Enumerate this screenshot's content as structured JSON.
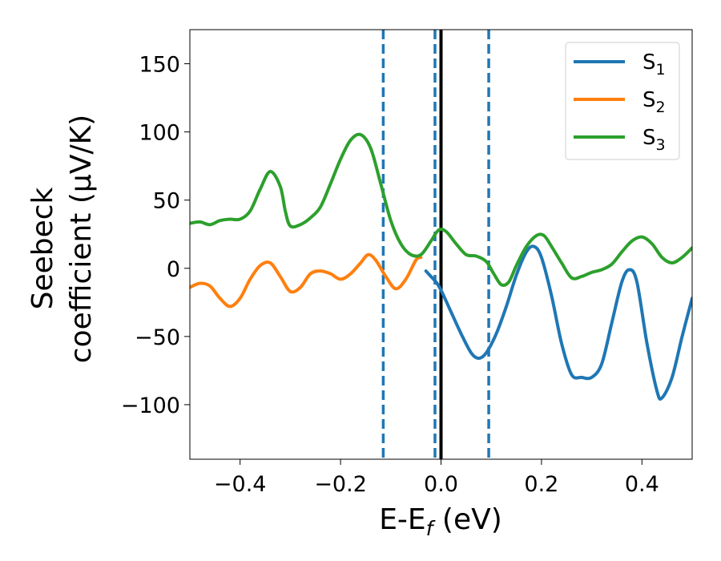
{
  "chart_data": {
    "type": "line",
    "title": "",
    "xlabel": "E-E",
    "xlabel_sub": "f",
    "xlabel_unit": " (eV)",
    "ylabel_line1": "Seebeck",
    "ylabel_line2": "coefficient  (μV/K)",
    "xlim": [
      -0.5,
      0.5
    ],
    "ylim": [
      -140,
      175
    ],
    "xticks": [
      -0.4,
      -0.2,
      0.0,
      0.2,
      0.4
    ],
    "xtick_labels": [
      "−0.4",
      "−0.2",
      "0.0",
      "0.2",
      "0.4"
    ],
    "yticks": [
      -100,
      -50,
      0,
      50,
      100,
      150
    ],
    "ytick_labels": [
      "−100",
      "−50",
      "0",
      "50",
      "100",
      "150"
    ],
    "grid": false,
    "legend_position": "top-right",
    "vlines": [
      {
        "x": -0.115,
        "style": "dashed",
        "color": "#1f77b4"
      },
      {
        "x": -0.012,
        "style": "dashed",
        "color": "#1f77b4"
      },
      {
        "x": 0.0,
        "style": "solid",
        "color": "#000000"
      },
      {
        "x": 0.095,
        "style": "dashed",
        "color": "#1f77b4"
      }
    ],
    "series": [
      {
        "name": "S",
        "sub": "1",
        "color": "#1f77b4",
        "points": [
          [
            -0.03,
            -2
          ],
          [
            -0.02,
            -6
          ],
          [
            -0.01,
            -10
          ],
          [
            0.0,
            -16
          ],
          [
            0.02,
            -32
          ],
          [
            0.04,
            -48
          ],
          [
            0.06,
            -62
          ],
          [
            0.075,
            -66
          ],
          [
            0.09,
            -62
          ],
          [
            0.11,
            -48
          ],
          [
            0.13,
            -28
          ],
          [
            0.15,
            -5
          ],
          [
            0.17,
            12
          ],
          [
            0.185,
            16
          ],
          [
            0.2,
            8
          ],
          [
            0.22,
            -20
          ],
          [
            0.24,
            -55
          ],
          [
            0.26,
            -78
          ],
          [
            0.28,
            -80
          ],
          [
            0.3,
            -80
          ],
          [
            0.32,
            -70
          ],
          [
            0.34,
            -40
          ],
          [
            0.36,
            -10
          ],
          [
            0.375,
            -1
          ],
          [
            0.39,
            -10
          ],
          [
            0.41,
            -55
          ],
          [
            0.43,
            -90
          ],
          [
            0.44,
            -95
          ],
          [
            0.46,
            -80
          ],
          [
            0.48,
            -50
          ],
          [
            0.5,
            -22
          ]
        ]
      },
      {
        "name": "S",
        "sub": "2",
        "color": "#ff7f0e",
        "points": [
          [
            -0.5,
            -14
          ],
          [
            -0.48,
            -11
          ],
          [
            -0.46,
            -13
          ],
          [
            -0.44,
            -22
          ],
          [
            -0.42,
            -28
          ],
          [
            -0.4,
            -22
          ],
          [
            -0.38,
            -8
          ],
          [
            -0.36,
            2
          ],
          [
            -0.34,
            4
          ],
          [
            -0.32,
            -6
          ],
          [
            -0.3,
            -17
          ],
          [
            -0.28,
            -14
          ],
          [
            -0.26,
            -4
          ],
          [
            -0.24,
            -2
          ],
          [
            -0.22,
            -4
          ],
          [
            -0.2,
            -8
          ],
          [
            -0.18,
            -4
          ],
          [
            -0.16,
            4
          ],
          [
            -0.145,
            10
          ],
          [
            -0.13,
            6
          ],
          [
            -0.11,
            -6
          ],
          [
            -0.09,
            -15
          ],
          [
            -0.07,
            -8
          ],
          [
            -0.05,
            6
          ],
          [
            -0.04,
            8
          ]
        ]
      },
      {
        "name": "S",
        "sub": "3",
        "color": "#2ca02c",
        "points": [
          [
            -0.5,
            33
          ],
          [
            -0.48,
            34
          ],
          [
            -0.46,
            32
          ],
          [
            -0.44,
            35
          ],
          [
            -0.42,
            36
          ],
          [
            -0.4,
            36
          ],
          [
            -0.38,
            42
          ],
          [
            -0.36,
            58
          ],
          [
            -0.34,
            71
          ],
          [
            -0.32,
            60
          ],
          [
            -0.31,
            42
          ],
          [
            -0.3,
            31
          ],
          [
            -0.28,
            32
          ],
          [
            -0.26,
            37
          ],
          [
            -0.24,
            45
          ],
          [
            -0.22,
            62
          ],
          [
            -0.2,
            80
          ],
          [
            -0.18,
            94
          ],
          [
            -0.16,
            98
          ],
          [
            -0.14,
            88
          ],
          [
            -0.12,
            62
          ],
          [
            -0.1,
            35
          ],
          [
            -0.08,
            18
          ],
          [
            -0.06,
            10
          ],
          [
            -0.04,
            10
          ],
          [
            -0.02,
            20
          ],
          [
            -0.005,
            28
          ],
          [
            0.01,
            27
          ],
          [
            0.03,
            18
          ],
          [
            0.05,
            10
          ],
          [
            0.07,
            9
          ],
          [
            0.09,
            5
          ],
          [
            0.105,
            -4
          ],
          [
            0.12,
            -12
          ],
          [
            0.135,
            -10
          ],
          [
            0.15,
            2
          ],
          [
            0.17,
            16
          ],
          [
            0.19,
            24
          ],
          [
            0.205,
            24
          ],
          [
            0.22,
            16
          ],
          [
            0.24,
            4
          ],
          [
            0.26,
            -7
          ],
          [
            0.28,
            -6
          ],
          [
            0.3,
            -3
          ],
          [
            0.32,
            -1
          ],
          [
            0.34,
            3
          ],
          [
            0.36,
            12
          ],
          [
            0.38,
            20
          ],
          [
            0.4,
            23
          ],
          [
            0.42,
            18
          ],
          [
            0.44,
            8
          ],
          [
            0.46,
            4
          ],
          [
            0.48,
            8
          ],
          [
            0.5,
            15
          ]
        ]
      }
    ]
  }
}
